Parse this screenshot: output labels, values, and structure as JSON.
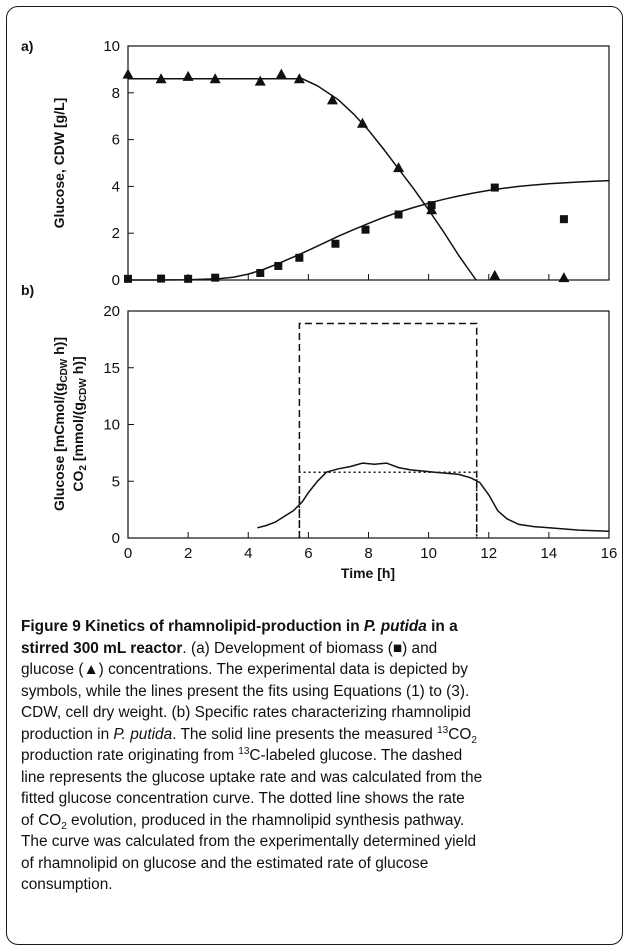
{
  "chart_data": [
    {
      "panel": "a)",
      "type": "scatter",
      "xlabel": "",
      "ylabel": "Glucose, CDW [g/L]",
      "xlim": [
        0,
        16
      ],
      "ylim": [
        0,
        10
      ],
      "xticks": [
        0,
        2,
        4,
        6,
        8,
        10,
        12,
        14,
        16
      ],
      "yticks": [
        0,
        2,
        4,
        6,
        8,
        10
      ],
      "series": [
        {
          "marker": "triangle",
          "x": [
            0.0,
            1.1,
            2.0,
            2.9,
            4.4,
            5.1,
            5.7,
            6.8,
            7.8,
            9.0,
            10.1,
            12.2,
            14.5
          ],
          "y": [
            8.8,
            8.6,
            8.7,
            8.6,
            8.5,
            8.8,
            8.6,
            7.7,
            6.7,
            4.8,
            3.0,
            0.2,
            0.1
          ]
        },
        {
          "marker": "square",
          "x": [
            0.0,
            1.1,
            2.0,
            2.9,
            4.4,
            5.0,
            5.7,
            6.9,
            7.9,
            9.0,
            10.1,
            12.2,
            14.5
          ],
          "y": [
            0.05,
            0.06,
            0.05,
            0.1,
            0.3,
            0.6,
            0.95,
            1.55,
            2.15,
            2.8,
            3.2,
            3.95,
            2.6
          ]
        },
        {
          "type": "line",
          "x": [
            0,
            1,
            2,
            3,
            4,
            5,
            5.8,
            6.3,
            7,
            7.5,
            8,
            8.5,
            9,
            9.5,
            10,
            10.5,
            11,
            11.58
          ],
          "y": [
            8.6,
            8.6,
            8.6,
            8.6,
            8.6,
            8.6,
            8.6,
            8.3,
            7.7,
            7.1,
            6.4,
            5.6,
            4.75,
            3.9,
            3.0,
            2.05,
            1.05,
            0
          ]
        },
        {
          "type": "line",
          "x": [
            0,
            1,
            2,
            3,
            3.5,
            4,
            4.5,
            5,
            5.5,
            6,
            6.5,
            7,
            7.5,
            8,
            8.5,
            9,
            9.5,
            10,
            10.5,
            11,
            11.5,
            12,
            12.5,
            13,
            13.5,
            14,
            14.5,
            15,
            15.5,
            16
          ],
          "y": [
            0,
            0,
            0.01,
            0.05,
            0.12,
            0.25,
            0.45,
            0.7,
            0.98,
            1.27,
            1.57,
            1.87,
            2.15,
            2.42,
            2.67,
            2.9,
            3.1,
            3.28,
            3.45,
            3.59,
            3.72,
            3.83,
            3.92,
            4.0,
            4.06,
            4.11,
            4.15,
            4.19,
            4.22,
            4.25
          ]
        }
      ]
    },
    {
      "panel": "b)",
      "type": "line",
      "xlabel": "Time [h]",
      "ylabel_line1": "Glucose [mCmol/(g",
      "ylabel_line1_sub": "CDW",
      "ylabel_line1_end": " h)]",
      "ylabel_line2": "CO",
      "ylabel_line2_sub": "2",
      "ylabel_line2_mid": " [mmol/(g",
      "ylabel_line2_sub2": "CDW",
      "ylabel_line2_end": " h)]",
      "xlim": [
        0,
        16
      ],
      "ylim": [
        0,
        20
      ],
      "xticks": [
        0,
        2,
        4,
        6,
        8,
        10,
        12,
        14,
        16
      ],
      "yticks": [
        0,
        5,
        10,
        15,
        20
      ],
      "series": [
        {
          "style": "solid",
          "x": [
            4.3,
            4.6,
            4.9,
            5.2,
            5.5,
            5.8,
            6.0,
            6.3,
            6.6,
            7.0,
            7.4,
            7.8,
            8.2,
            8.6,
            9.0,
            9.4,
            9.8,
            10.2,
            10.6,
            11.0,
            11.4,
            11.7,
            12.0,
            12.3,
            12.6,
            13.0,
            13.5,
            14.0,
            15.0,
            16.0
          ],
          "y": [
            0.9,
            1.1,
            1.4,
            1.9,
            2.4,
            3.2,
            4.0,
            5.0,
            5.8,
            6.1,
            6.3,
            6.6,
            6.5,
            6.6,
            6.2,
            6.0,
            5.9,
            5.8,
            5.7,
            5.6,
            5.3,
            4.9,
            3.8,
            2.4,
            1.7,
            1.2,
            1.0,
            0.9,
            0.7,
            0.6
          ]
        },
        {
          "style": "dashed",
          "x": [
            5.7,
            5.7,
            11.6,
            11.6
          ],
          "y": [
            0,
            18.9,
            18.9,
            0
          ]
        },
        {
          "style": "dotted",
          "x": [
            5.7,
            5.7,
            11.6,
            11.6
          ],
          "y": [
            0,
            5.8,
            5.8,
            0
          ]
        }
      ]
    }
  ],
  "caption": {
    "fig_label": "Figure 9 Kinetics of rhamnolipid-production in ",
    "fig_species": "P. putida",
    "fig_label_2": " in a",
    "fig_label_3": "stirred 300 mL reactor",
    "s1": ". (a) Development of biomass (■) and",
    "s2": "glucose (▲) concentrations. The experimental data is depicted by",
    "s3": "symbols, while the lines present the fits using Equations (1) to (3).",
    "s4": "CDW, cell dry weight. (b) Specific rates characterizing rhamnolipid",
    "s5a": "production in ",
    "s5b": "P. putida",
    "s5c": ". The solid line presents the measured ",
    "s5sup": "13",
    "s5d": "CO",
    "s5sub": "2",
    "s6a": "production rate originating from ",
    "s6sup": "13",
    "s6b": "C-labeled glucose. The dashed",
    "s7": "line represents the glucose uptake rate and was calculated from the",
    "s8": "fitted glucose concentration curve. The dotted line shows the rate",
    "s9a": "of CO",
    "s9sub": "2",
    "s9b": " evolution, produced in the rhamnolipid synthesis pathway.",
    "s10": "The curve was calculated from the experimentally determined yield",
    "s11": "of rhamnolipid on glucose and the estimated rate of glucose",
    "s12": "consumption."
  }
}
